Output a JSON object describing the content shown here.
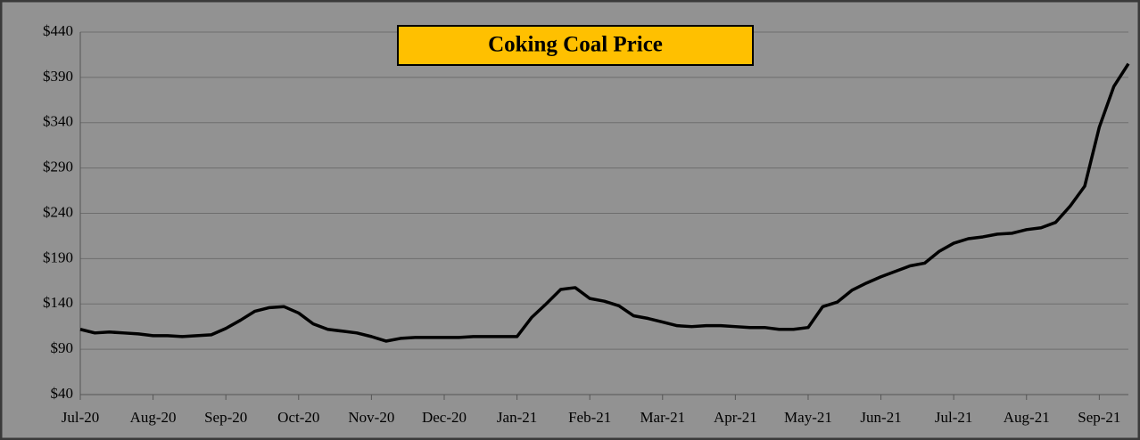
{
  "chart_data": {
    "type": "line",
    "title": "Coking Coal Price",
    "categories": [
      "Jul-20",
      null,
      null,
      null,
      null,
      "Aug-20",
      null,
      null,
      null,
      null,
      "Sep-20",
      null,
      null,
      null,
      null,
      "Oct-20",
      null,
      null,
      null,
      null,
      "Nov-20",
      null,
      null,
      null,
      null,
      "Dec-20",
      null,
      null,
      null,
      null,
      "Jan-21",
      null,
      null,
      null,
      null,
      "Feb-21",
      null,
      null,
      null,
      null,
      "Mar-21",
      null,
      null,
      null,
      null,
      "Apr-21",
      null,
      null,
      null,
      null,
      "May-21",
      null,
      null,
      null,
      null,
      "Jun-21",
      null,
      null,
      null,
      null,
      "Jul-21",
      null,
      null,
      null,
      null,
      "Aug-21",
      null,
      null,
      null,
      null,
      "Sep-21",
      null,
      null
    ],
    "values": [
      112,
      108,
      109,
      108,
      107,
      105,
      105,
      104,
      105,
      106,
      113,
      122,
      132,
      136,
      137,
      130,
      118,
      112,
      110,
      108,
      104,
      99,
      102,
      103,
      103,
      103,
      103,
      104,
      104,
      104,
      104,
      125,
      140,
      156,
      158,
      146,
      143,
      138,
      127,
      124,
      120,
      116,
      115,
      116,
      116,
      115,
      114,
      114,
      112,
      112,
      114,
      137,
      142,
      155,
      163,
      170,
      176,
      182,
      185,
      198,
      207,
      212,
      214,
      217,
      218,
      222,
      224,
      230,
      248,
      270,
      335,
      380,
      405
    ],
    "color": "#000000",
    "ylim": [
      40,
      440
    ],
    "yticks": [
      {
        "value": 40,
        "label": "$40"
      },
      {
        "value": 90,
        "label": "$90"
      },
      {
        "value": 140,
        "label": "$140"
      },
      {
        "value": 190,
        "label": "$190"
      },
      {
        "value": 240,
        "label": "$240"
      },
      {
        "value": 290,
        "label": "$290"
      },
      {
        "value": 340,
        "label": "$340"
      },
      {
        "value": 390,
        "label": "$390"
      },
      {
        "value": 440,
        "label": "$440"
      }
    ],
    "grid": true
  }
}
